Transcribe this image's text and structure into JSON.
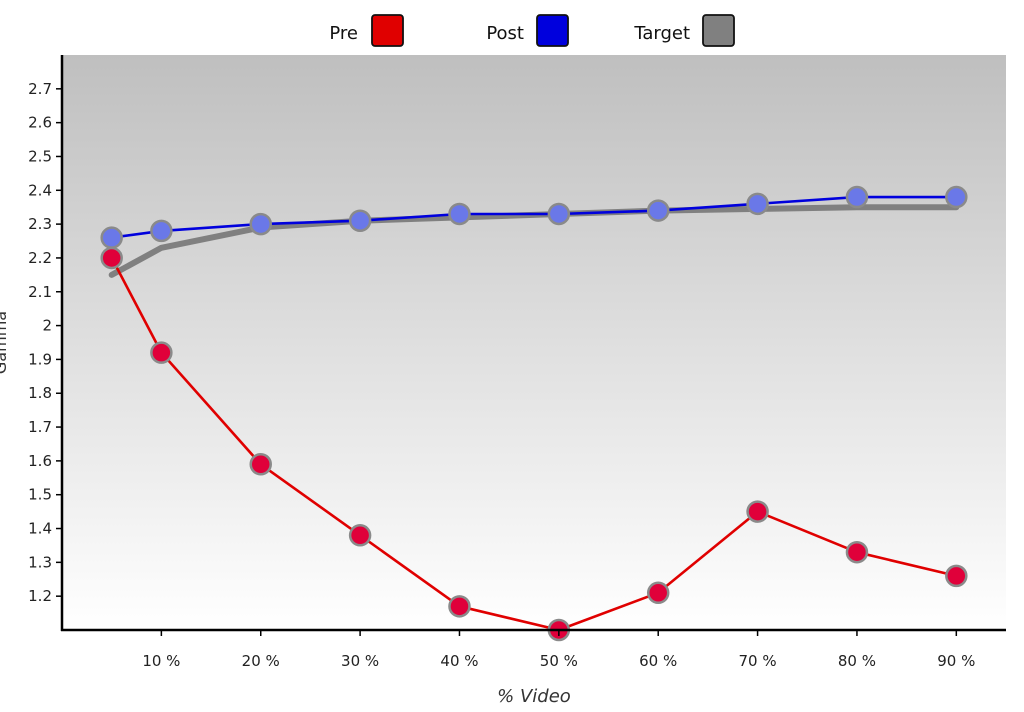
{
  "chart_data": {
    "type": "line",
    "title": "",
    "xlabel": "% Video",
    "ylabel": "Gamma",
    "x": [
      5,
      10,
      20,
      30,
      40,
      50,
      60,
      70,
      80,
      90
    ],
    "x_tick_values": [
      10,
      20,
      30,
      40,
      50,
      60,
      70,
      80,
      90
    ],
    "x_tick_labels": [
      "10 %",
      "20 %",
      "30 %",
      "40 %",
      "50 %",
      "60 %",
      "70 %",
      "80 %",
      "90 %"
    ],
    "y_tick_values": [
      1.2,
      1.3,
      1.4,
      1.5,
      1.6,
      1.7,
      1.8,
      1.9,
      2.0,
      2.1,
      2.2,
      2.3,
      2.4,
      2.5,
      2.6,
      2.7
    ],
    "y_tick_labels": [
      "1.2",
      "1.3",
      "1.4",
      "1.5",
      "1.6",
      "1.7",
      "1.8",
      "1.9",
      "2",
      "2.1",
      "2.2",
      "2.3",
      "2.4",
      "2.5",
      "2.6",
      "2.7"
    ],
    "xlim": [
      0,
      95
    ],
    "ylim": [
      1.1,
      2.8
    ],
    "grid": false,
    "legend_position": "top",
    "background": "vertical gradient, grey top to white bottom",
    "series": [
      {
        "name": "Pre",
        "color": "#e00000",
        "marker_color": "#e0003a",
        "markers": true,
        "values": [
          2.2,
          1.92,
          1.59,
          1.38,
          1.17,
          1.1,
          1.21,
          1.45,
          1.33,
          1.26
        ]
      },
      {
        "name": "Post",
        "color": "#0000dd",
        "marker_color": "#6a78e8",
        "markers": true,
        "values": [
          2.26,
          2.28,
          2.3,
          2.31,
          2.33,
          2.33,
          2.34,
          2.36,
          2.38,
          2.38
        ]
      },
      {
        "name": "Target",
        "color": "#808080",
        "markers": false,
        "x": [
          5,
          10,
          20,
          30,
          40,
          50,
          60,
          70,
          80,
          90
        ],
        "values": [
          2.15,
          2.23,
          2.29,
          2.31,
          2.32,
          2.33,
          2.34,
          2.345,
          2.35,
          2.35
        ]
      }
    ]
  }
}
